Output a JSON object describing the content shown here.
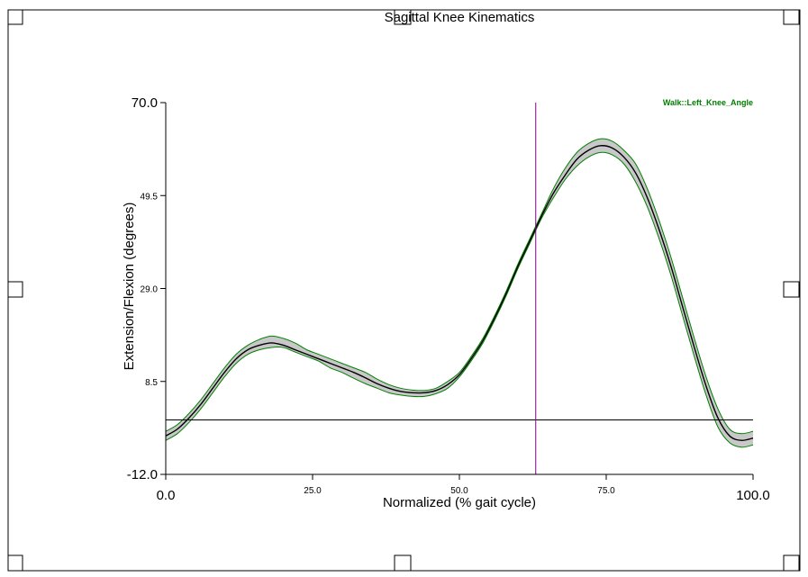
{
  "chart_data": {
    "type": "line",
    "title": "Sagittal Knee Kinematics",
    "xlabel": "Normalized (% gait cycle)",
    "ylabel": "Extension/Flexion (degrees)",
    "xlim": [
      0,
      100
    ],
    "ylim": [
      -12,
      70
    ],
    "x_ticks": [
      {
        "value": 0,
        "label": "0.0",
        "major": true
      },
      {
        "value": 25,
        "label": "25.0",
        "major": false
      },
      {
        "value": 50,
        "label": "50.0",
        "major": false
      },
      {
        "value": 75,
        "label": "75.0",
        "major": false
      },
      {
        "value": 100,
        "label": "100.0",
        "major": true
      }
    ],
    "y_ticks": [
      {
        "value": 70,
        "label": "70.0",
        "major": true
      },
      {
        "value": 49.5,
        "label": "49.5",
        "major": false
      },
      {
        "value": 29,
        "label": "29.0",
        "major": false
      },
      {
        "value": 8.5,
        "label": "8.5",
        "major": false
      },
      {
        "value": -12,
        "label": "-12.0",
        "major": true
      }
    ],
    "reference_lines": {
      "horizontal_y": 0,
      "vertical_x": 63,
      "vertical_color": "#800080"
    },
    "grid": false,
    "legend": {
      "position": "top-right",
      "label": "Walk::Left_Knee_Angle",
      "color": "#008000"
    },
    "series": [
      {
        "name": "Walk::Left_Knee_Angle",
        "color": "#000000",
        "band_color": "#c8c8c8",
        "band_edge_color": "#008000",
        "x": [
          0,
          2,
          4,
          6,
          8,
          10,
          12,
          14,
          16,
          18,
          20,
          22,
          24,
          26,
          28,
          30,
          32,
          34,
          36,
          38,
          40,
          42,
          44,
          46,
          48,
          50,
          52,
          54,
          56,
          58,
          60,
          62,
          64,
          66,
          68,
          70,
          72,
          74,
          76,
          78,
          80,
          82,
          84,
          86,
          88,
          90,
          92,
          94,
          96,
          98,
          100
        ],
        "mean": [
          -3.5,
          -2,
          0.5,
          3.5,
          7,
          10.5,
          13.5,
          15.5,
          16.5,
          17,
          16.5,
          15.5,
          14.5,
          13.5,
          12.5,
          11.5,
          10.5,
          9.3,
          8,
          7,
          6.3,
          6,
          6,
          6.5,
          7.8,
          10,
          13.5,
          17.5,
          22.5,
          28,
          34,
          39.5,
          45,
          50,
          54,
          57.5,
          59.5,
          60.5,
          60,
          58,
          54.5,
          49,
          42,
          34,
          25,
          16,
          7.5,
          0.5,
          -3.5,
          -4.5,
          -4
        ],
        "lower": [
          -4.5,
          -3,
          -0.5,
          2.5,
          6,
          9.5,
          12.5,
          14.5,
          15.5,
          16,
          16,
          15,
          14,
          13,
          11.5,
          10.5,
          9.2,
          8,
          7,
          6,
          5.5,
          5.2,
          5.2,
          5.8,
          7,
          9.5,
          13,
          17,
          22,
          27.5,
          33.5,
          39,
          44.5,
          49,
          53,
          56,
          58,
          59,
          58.5,
          56.5,
          52.5,
          47,
          40,
          32,
          23,
          14,
          5.5,
          -1.5,
          -5,
          -6,
          -5.5
        ],
        "upper": [
          -2.5,
          -1,
          1.5,
          4.5,
          8,
          11.5,
          14.5,
          16.5,
          17.8,
          18.5,
          18,
          17,
          15.5,
          14.5,
          13.5,
          12.5,
          11.5,
          10.5,
          9,
          7.8,
          7,
          6.6,
          6.5,
          7,
          8.5,
          10.5,
          14,
          18,
          23,
          28.5,
          34.5,
          40,
          45.5,
          51,
          55.5,
          59,
          61,
          62,
          61.5,
          59.5,
          56.5,
          51,
          44,
          36,
          27,
          18,
          9.5,
          2.5,
          -2,
          -3,
          -2.5
        ]
      }
    ]
  }
}
